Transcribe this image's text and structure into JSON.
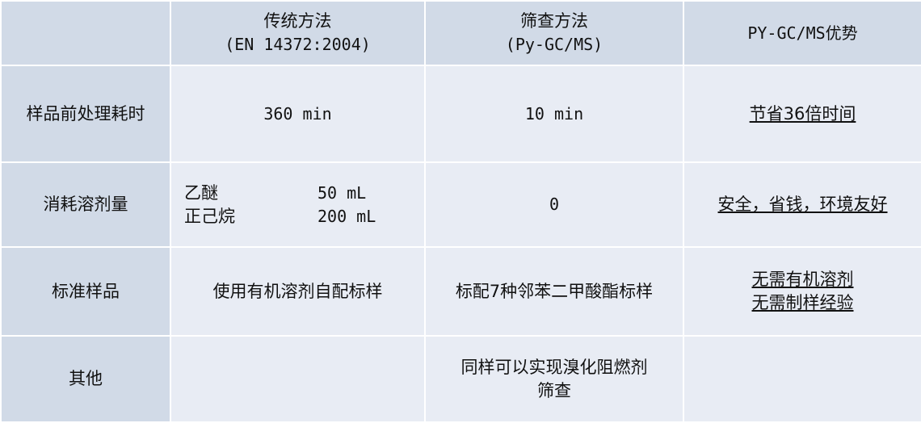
{
  "header": {
    "corner": "",
    "col1_title": "传统方法",
    "col1_sub": "(EN 14372:2004)",
    "col2_title": "筛查方法",
    "col2_sub": "(Py-GC/MS)",
    "col3_title": "PY-GC/MS优势"
  },
  "rows": [
    {
      "label": "样品前处理耗时",
      "traditional": "360 min",
      "screening": "10 min",
      "advantage": [
        "节省36倍时间"
      ]
    },
    {
      "label": "消耗溶剂量",
      "traditional_items": [
        {
          "name": "乙醚",
          "value": "50 mL"
        },
        {
          "name": "正己烷",
          "value": "200 mL"
        }
      ],
      "screening": "0",
      "advantage": [
        "安全，省钱，环境友好"
      ]
    },
    {
      "label": "标准样品",
      "traditional": "使用有机溶剂自配标样",
      "screening": "标配7种邻苯二甲酸酯标样",
      "advantage": [
        "无需有机溶剂",
        "无需制样经验"
      ]
    },
    {
      "label": "其他",
      "traditional": "",
      "screening_lines": [
        "同样可以实现溴化阻燃剂",
        "筛查"
      ],
      "advantage": []
    }
  ],
  "colors": {
    "header_bg": "#d1dae7",
    "cell_bg": "#e8ecf4",
    "border": "#ffffff"
  }
}
